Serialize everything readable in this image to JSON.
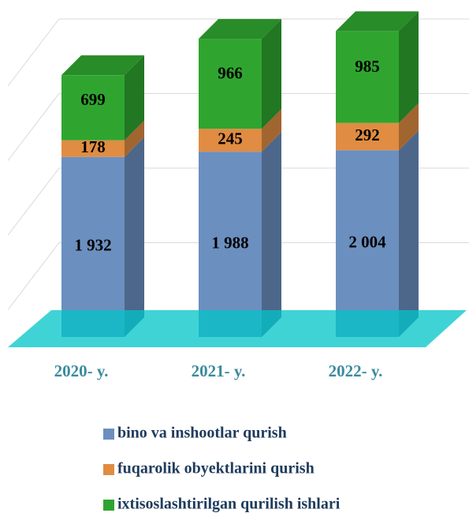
{
  "chart_data": {
    "type": "bar3d_stacked",
    "categories": [
      "2020- y.",
      "2021- y.",
      "2022- y."
    ],
    "series": [
      {
        "name": "bino va inshootlar qurish",
        "color": "#6b8fbf",
        "values": [
          1932,
          1988,
          2004
        ],
        "value_labels": [
          "1 932",
          "1 988",
          "2 004"
        ]
      },
      {
        "name": "fuqarolik obyektlarini qurish",
        "color": "#e08c42",
        "values": [
          178,
          245,
          292
        ]
      },
      {
        "name": "ixtisoslashtirilgan qurilish ishlari",
        "color": "#2fa52f",
        "values": [
          699,
          966,
          985
        ]
      }
    ],
    "ylim": [
      0,
      3200
    ],
    "grid": true,
    "legend": "bottom"
  }
}
